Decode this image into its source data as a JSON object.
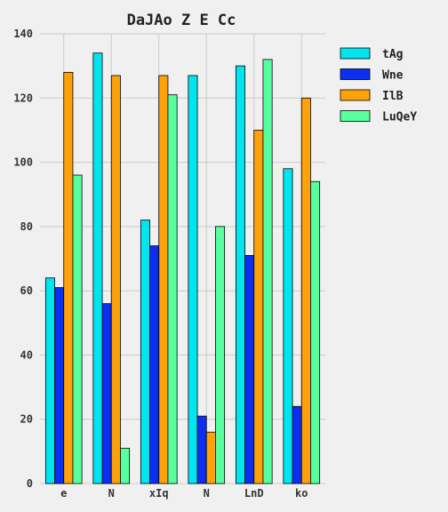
{
  "chart_data": {
    "type": "bar",
    "title": "DaJAo Z E Cc",
    "xlabel": "",
    "ylabel": "",
    "categories": [
      "e",
      "N",
      "xIq",
      "N",
      "LnD",
      "ko"
    ],
    "series": [
      {
        "name": "tAg",
        "color": "#00e5ee",
        "values": [
          64,
          134,
          82,
          127,
          130,
          98
        ]
      },
      {
        "name": "Wne",
        "color": "#0a2ff0",
        "values": [
          61,
          56,
          74,
          21,
          71,
          24
        ]
      },
      {
        "name": "IlB",
        "color": "#ffa10a",
        "values": [
          128,
          127,
          127,
          16,
          110,
          120
        ]
      },
      {
        "name": "LuQeY",
        "color": "#57ff9e",
        "values": [
          96,
          11,
          121,
          80,
          132,
          94
        ]
      }
    ],
    "ylim": [
      0,
      140
    ],
    "yticks": [
      0,
      20,
      40,
      60,
      80,
      100,
      120,
      140
    ],
    "grid": true,
    "legend_position": "top-right"
  }
}
